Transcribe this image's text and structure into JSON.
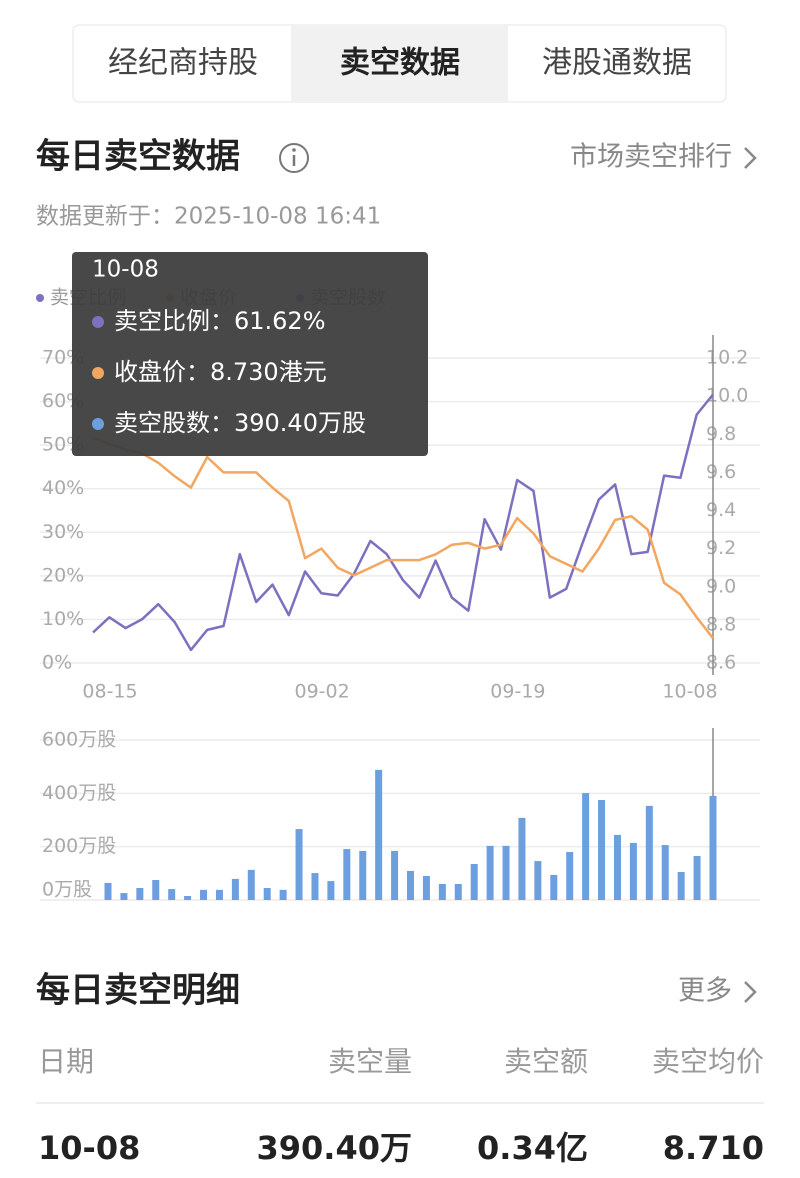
{
  "tabs": [
    "经纪商持股",
    "卖空数据",
    "港股通数据"
  ],
  "header": {
    "title": "每日卖空数据",
    "link": "市场卖空排行",
    "updated": "数据更新于：2025-10-08 16:41"
  },
  "tooltip": {
    "date": "10-08",
    "items": [
      "卖空比例：61.62%",
      "收盘价：8.730港元",
      "卖空股数：390.40万股"
    ]
  },
  "chart_data": [
    {
      "type": "line",
      "categories": [
        "08-15",
        null,
        null,
        null,
        null,
        null,
        null,
        null,
        null,
        null,
        null,
        null,
        null,
        "09-02",
        null,
        null,
        null,
        null,
        null,
        null,
        null,
        null,
        null,
        null,
        null,
        "09-19",
        null,
        null,
        null,
        null,
        null,
        null,
        null,
        null,
        null,
        null,
        null,
        null,
        "10-08"
      ],
      "series": [
        {
          "name": "卖空比例",
          "color": "#7d70c0",
          "values": [
            7,
            10.5,
            8,
            10,
            13.5,
            9.4,
            3,
            7.6,
            8.5,
            25,
            14,
            18,
            11,
            21,
            16,
            15.5,
            20.5,
            28,
            25,
            19,
            15,
            23.5,
            15,
            12,
            33,
            26,
            42,
            39.5,
            15,
            17,
            27.5,
            37.5,
            41,
            25,
            25.5,
            43,
            42.5,
            57,
            61.62
          ]
        },
        {
          "name": "收盘价",
          "color": "#f2a660",
          "axis": "y2",
          "values": [
            9.78,
            9.75,
            9.72,
            9.7,
            9.65,
            9.58,
            9.52,
            9.68,
            9.6,
            9.6,
            9.6,
            9.52,
            9.45,
            9.15,
            9.2,
            9.1,
            9.06,
            9.1,
            9.14,
            9.14,
            9.14,
            9.17,
            9.22,
            9.23,
            9.2,
            9.22,
            9.36,
            9.28,
            9.16,
            9.12,
            9.08,
            9.2,
            9.35,
            9.37,
            9.3,
            9.02,
            8.96,
            8.84,
            8.73
          ]
        }
      ],
      "ylim": [
        0,
        70
      ],
      "yticks": [
        {
          "value": 0,
          "label": "0%"
        },
        {
          "value": 10,
          "label": "10%"
        },
        {
          "value": 20,
          "label": "20%"
        },
        {
          "value": 30,
          "label": "30%"
        },
        {
          "value": 40,
          "label": "40%"
        },
        {
          "value": 50,
          "label": "50%"
        },
        {
          "value": 60,
          "label": "60%"
        },
        {
          "value": 70,
          "label": "70%"
        }
      ],
      "y2lim": [
        8.6,
        10.2
      ],
      "y2ticks": [
        8.6,
        8.8,
        {
          "value": 9,
          "label": "9.0"
        },
        9.2,
        9.4,
        9.6,
        9.8,
        {
          "value": 10,
          "label": "10.0"
        },
        10.2
      ],
      "grid": true
    },
    {
      "type": "bar",
      "series": [
        {
          "name": "卖空股数",
          "color": "#6c9fe0",
          "values": [
            64,
            26,
            45,
            75,
            41,
            15,
            38,
            38,
            79,
            113,
            45,
            38,
            266,
            101,
            71,
            191,
            184,
            488,
            184,
            109,
            90,
            60,
            60,
            135,
            203,
            203,
            308,
            146,
            94,
            180,
            401,
            375,
            244,
            214,
            353,
            206,
            105,
            165,
            390.4
          ]
        }
      ],
      "ylim": [
        0,
        600
      ],
      "yticks": [
        {
          "value": 0,
          "label": "0万股"
        },
        {
          "value": 200,
          "label": "200万股"
        },
        {
          "value": 400,
          "label": "400万股"
        },
        {
          "value": 600,
          "label": "600万股"
        }
      ],
      "grid": true
    }
  ],
  "detail": {
    "title": "每日卖空明细",
    "link": "更多",
    "columns": [
      "日期",
      "卖空量",
      "卖空额",
      "卖空均价"
    ],
    "rows": [
      [
        "10-08",
        "390.40万",
        "0.34亿",
        "8.710"
      ]
    ]
  }
}
